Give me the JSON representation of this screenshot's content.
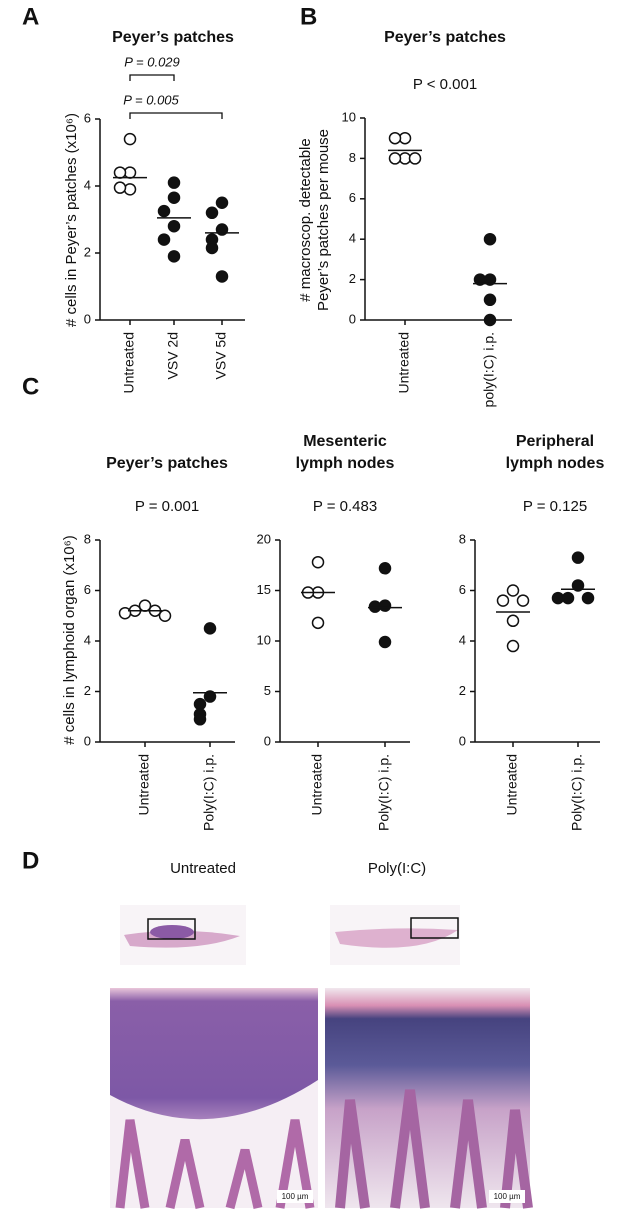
{
  "panel_labels": [
    "A",
    "B",
    "C",
    "D"
  ],
  "chart_data": [
    {
      "type": "dot",
      "title": [
        "Peyer’s patches"
      ],
      "ylabel": [
        "# cells in Peyer’s patches (x10⁶)"
      ],
      "categories": [
        "Untreated",
        "VSV 2d",
        "VSV 5d"
      ],
      "values": [
        [
          5.4,
          4.4,
          4.4,
          3.9,
          3.95
        ],
        [
          4.1,
          3.65,
          3.25,
          2.8,
          2.4,
          1.9
        ],
        [
          3.5,
          3.2,
          2.7,
          2.4,
          2.15,
          1.3
        ]
      ],
      "means": [
        4.25,
        3.05,
        2.6
      ],
      "markers": [
        "open",
        "filled",
        "filled"
      ],
      "ylim": [
        0,
        6
      ],
      "yticks": [
        0,
        2,
        4,
        6
      ],
      "brackets": [
        {
          "label": "P = 0.029",
          "between": [
            0,
            1
          ]
        },
        {
          "label": "P = 0.005",
          "between": [
            0,
            2
          ]
        }
      ]
    },
    {
      "type": "dot",
      "title": [
        "Peyer’s patches"
      ],
      "annotation": "P < 0.001",
      "ylabel": [
        "# macroscop. detectable",
        "Peyer’s patches per mouse"
      ],
      "categories": [
        "Untreated",
        "poly(I:C) i.p."
      ],
      "values": [
        [
          9,
          9,
          8,
          8,
          8
        ],
        [
          4,
          2,
          2,
          1,
          0
        ]
      ],
      "means": [
        8.4,
        1.8
      ],
      "markers": [
        "open",
        "filled"
      ],
      "ylim": [
        0,
        10
      ],
      "yticks": [
        0,
        2,
        4,
        6,
        8,
        10
      ]
    },
    {
      "type": "dot",
      "title": [
        "Peyer’s patches"
      ],
      "annotation": "P = 0.001",
      "ylabel": [
        "# cells in lymphoid organ (x10⁶)"
      ],
      "categories": [
        "Untreated",
        "Poly(I:C) i.p."
      ],
      "values": [
        [
          5.4,
          5.2,
          5.2,
          5.1,
          5.0
        ],
        [
          4.5,
          1.8,
          1.5,
          1.1,
          0.9
        ]
      ],
      "means": [
        5.2,
        1.95
      ],
      "markers": [
        "open",
        "filled"
      ],
      "ylim": [
        0,
        8
      ],
      "yticks": [
        0,
        2,
        4,
        6,
        8
      ]
    },
    {
      "type": "dot",
      "title": [
        "Mesenteric",
        "lymph nodes"
      ],
      "annotation": "P = 0.483",
      "categories": [
        "Untreated",
        "Poly(I:C) i.p."
      ],
      "values": [
        [
          17.8,
          14.8,
          14.8,
          11.8
        ],
        [
          17.2,
          13.5,
          13.4,
          9.9
        ]
      ],
      "means": [
        14.8,
        13.3
      ],
      "markers": [
        "open",
        "filled"
      ],
      "ylim": [
        0,
        20
      ],
      "yticks": [
        0,
        5,
        10,
        15,
        20
      ]
    },
    {
      "type": "dot",
      "title": [
        "Peripheral",
        "lymph nodes"
      ],
      "annotation": "P = 0.125",
      "categories": [
        "Untreated",
        "Poly(I:C) i.p."
      ],
      "values": [
        [
          6.0,
          5.6,
          5.6,
          4.8,
          3.8
        ],
        [
          7.3,
          6.2,
          5.7,
          5.7,
          5.7
        ]
      ],
      "means": [
        5.15,
        6.05
      ],
      "markers": [
        "open",
        "filled"
      ],
      "ylim": [
        0,
        8
      ],
      "yticks": [
        0,
        2,
        4,
        6,
        8
      ]
    }
  ],
  "histology": {
    "labels": [
      "Untreated",
      "Poly(I:C)"
    ],
    "scale_bars": [
      "100 µm",
      "100 µm"
    ]
  }
}
